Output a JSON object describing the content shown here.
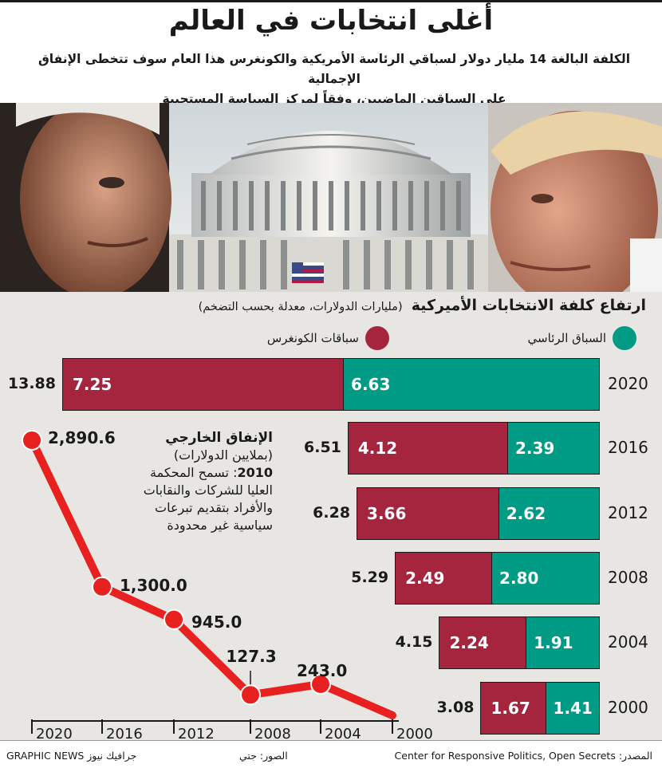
{
  "header": {
    "title": "أغلى انتخابات في العالم",
    "subtitle_line1": "الكلفة البالغة 14 مليار دولار لسباقي الرئاسة الأمريكية والكونغرس هذا العام سوف تتخطى الإنفاق الإجمالية",
    "subtitle_line2": "على السباقين الماضيين، وفقاً لمركز السياسة المستجيبة"
  },
  "colors": {
    "presidential": "#009b84",
    "congress": "#a5243e",
    "line": "#e8201f",
    "background": "#e7e6e2"
  },
  "chart_data": [
    {
      "type": "bar",
      "title": "ارتفاع كلفة الانتخابات الأميركية",
      "subtitle": "(مليارات الدولارات، معدلة بحسب التضخم)",
      "orientation": "horizontal-stacked",
      "legend_placement": "top",
      "categories": [
        "2020",
        "2016",
        "2012",
        "2008",
        "2004",
        "2000"
      ],
      "series": [
        {
          "name": "السباق الرئاسي",
          "color": "#009b84",
          "values": [
            6.63,
            2.39,
            2.62,
            2.8,
            1.91,
            1.41
          ]
        },
        {
          "name": "سباقات الكونغرس",
          "color": "#a5243e",
          "values": [
            7.25,
            4.12,
            3.66,
            2.49,
            2.24,
            1.67
          ]
        }
      ],
      "totals": [
        "13.88",
        "6.51",
        "6.28",
        "5.29",
        "4.15",
        "3.08"
      ],
      "value_labels": {
        "presidential": [
          "6.63",
          "2.39",
          "2.62",
          "2.80",
          "1.91",
          "1.41"
        ],
        "congress": [
          "7.25",
          "4.12",
          "3.66",
          "2.49",
          "2.24",
          "1.67"
        ]
      },
      "xlim": [
        0,
        13.88
      ]
    },
    {
      "type": "line",
      "title": "الإنفاق الخارجي",
      "subtitle": "(بملايين الدولارات)",
      "annotation_year": "2010",
      "annotation_text": ": تسمح المحكمة العليا للشركات والنقابات والأفراد بتقديم تبرعات سياسية غير محدودة",
      "annotation_lines": [
        "العليا للشركات والنقابات",
        "والأفراد بتقديم تبرعات",
        "سياسية غير محدودة"
      ],
      "annotation_first_line": ": تسمح المحكمة",
      "x": [
        "2020",
        "2016",
        "2012",
        "2008",
        "2004",
        "2000"
      ],
      "y": [
        2890.6,
        1300.0,
        945.0,
        127.3,
        243.0,
        0
      ],
      "labels": [
        "2,890.6",
        "1,300.0",
        "945.0",
        "127.3",
        "243.0"
      ],
      "ylim": [
        0,
        2890.6
      ],
      "grid": false
    }
  ],
  "footer": {
    "source": "المصدر: Center for Responsive Politics, Open Secrets",
    "photos": "الصور: جتي",
    "brand": "GRAPHIC NEWS جرافيك نيوز"
  }
}
